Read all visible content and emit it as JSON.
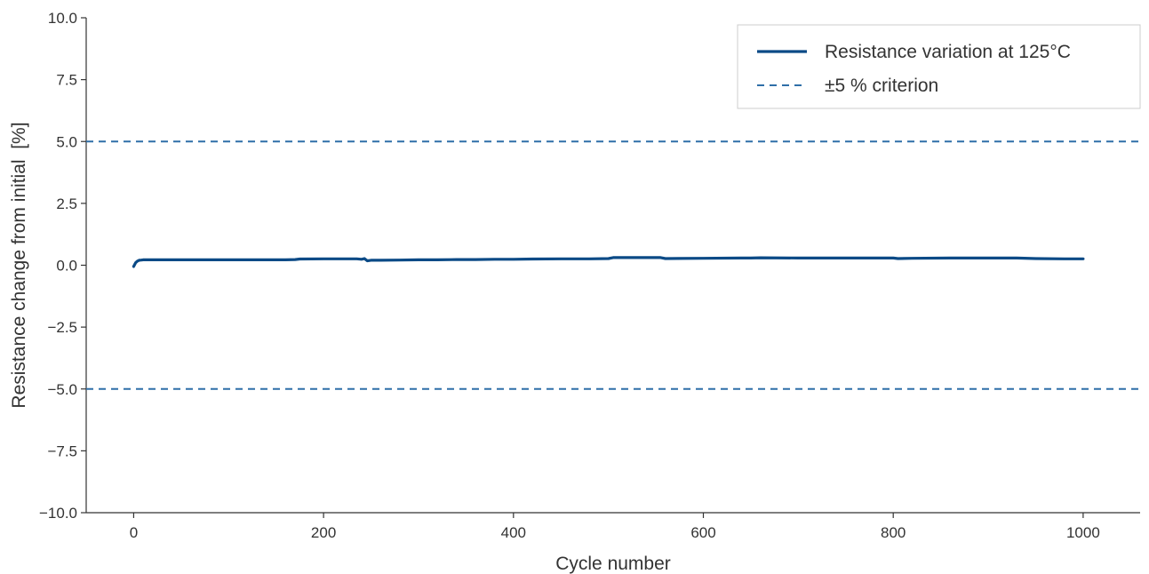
{
  "chart_data": {
    "type": "line",
    "title": "",
    "xlabel": "Cycle number",
    "ylabel": "Resistance change from initial  [%]",
    "xlim": [
      -50,
      1060
    ],
    "ylim": [
      -10.0,
      10.0
    ],
    "x_ticks": [
      0,
      200,
      400,
      600,
      800,
      1000
    ],
    "x_tick_labels": [
      "0",
      "200",
      "400",
      "600",
      "800",
      "1000"
    ],
    "y_ticks": [
      -10.0,
      -7.5,
      -5.0,
      -2.5,
      0.0,
      2.5,
      5.0,
      7.5,
      10.0
    ],
    "y_tick_labels": [
      "−10.0",
      "−7.5",
      "−5.0",
      "−2.5",
      "0.0",
      "2.5",
      "5.0",
      "7.5",
      "10.0"
    ],
    "grid": false,
    "legend_position": "top-right",
    "colors": {
      "series": "#0b4a86",
      "criterion": "#2f6fa8",
      "axis": "#333333"
    },
    "series": [
      {
        "name": "Resistance variation at 125°C",
        "style": "solid",
        "x": [
          0,
          2,
          4,
          6,
          8,
          10,
          15,
          20,
          30,
          50,
          80,
          100,
          130,
          160,
          170,
          175,
          200,
          220,
          235,
          240,
          243,
          246,
          250,
          260,
          280,
          300,
          320,
          340,
          360,
          380,
          400,
          420,
          450,
          480,
          500,
          505,
          520,
          540,
          555,
          560,
          600,
          640,
          650,
          660,
          700,
          740,
          780,
          800,
          805,
          820,
          860,
          900,
          930,
          950,
          980,
          1000
        ],
        "y": [
          -0.05,
          0.1,
          0.17,
          0.2,
          0.21,
          0.22,
          0.22,
          0.22,
          0.22,
          0.22,
          0.22,
          0.22,
          0.22,
          0.22,
          0.23,
          0.25,
          0.26,
          0.26,
          0.26,
          0.24,
          0.27,
          0.18,
          0.2,
          0.2,
          0.21,
          0.22,
          0.22,
          0.23,
          0.23,
          0.24,
          0.24,
          0.25,
          0.26,
          0.26,
          0.27,
          0.31,
          0.31,
          0.31,
          0.31,
          0.27,
          0.28,
          0.29,
          0.29,
          0.3,
          0.29,
          0.29,
          0.29,
          0.29,
          0.27,
          0.28,
          0.29,
          0.29,
          0.29,
          0.27,
          0.26,
          0.26
        ]
      },
      {
        "name": "±5 % criterion",
        "style": "dashed",
        "hlines": [
          5.0,
          -5.0
        ]
      }
    ]
  }
}
